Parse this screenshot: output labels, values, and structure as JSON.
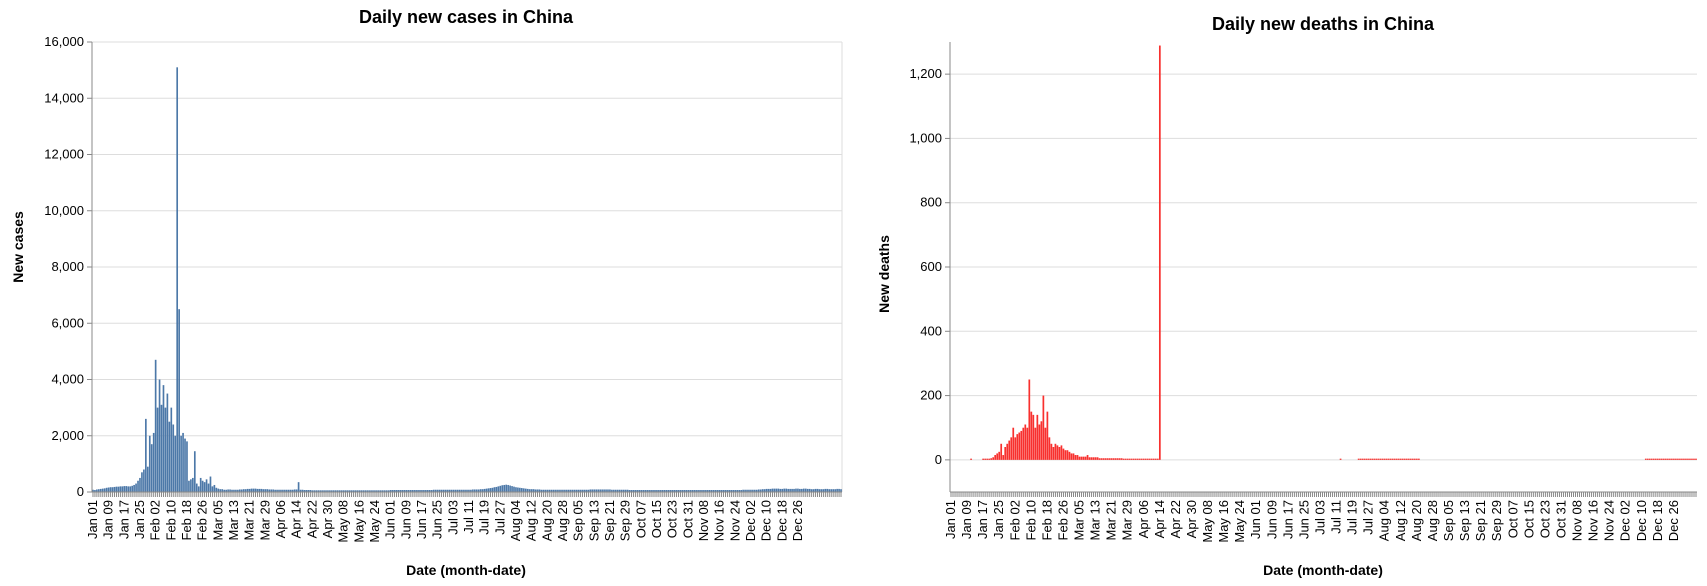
{
  "chart_data": [
    {
      "type": "bar",
      "title": "Daily new cases in China",
      "xlabel": "Date (month-date)",
      "ylabel": "New cases",
      "ylim": [
        0,
        16000
      ],
      "yticks": [
        "0",
        "2,000",
        "4,000",
        "6,000",
        "8,000",
        "10,000",
        "12,000",
        "14,000",
        "16,000"
      ],
      "ytick_values": [
        0,
        2000,
        4000,
        6000,
        8000,
        10000,
        12000,
        14000,
        16000
      ],
      "color": "#4c78a8",
      "grid": true,
      "x_start": "Jan 01",
      "xticks": [
        "Jan 01",
        "Jan 09",
        "Jan 17",
        "Jan 25",
        "Feb 02",
        "Feb 10",
        "Feb 18",
        "Feb 26",
        "Mar 05",
        "Mar 13",
        "Mar 21",
        "Mar 29",
        "Apr 06",
        "Apr 14",
        "Apr 22",
        "Apr 30",
        "May 08",
        "May 16",
        "May 24",
        "Jun 01",
        "Jun 09",
        "Jun 17",
        "Jun 25",
        "Jul 03",
        "Jul 11",
        "Jul 19",
        "Jul 27",
        "Aug 04",
        "Aug 12",
        "Aug 20",
        "Aug 28",
        "Sep 05",
        "Sep 13",
        "Sep 21",
        "Sep 29",
        "Oct 07",
        "Oct 15",
        "Oct 23",
        "Oct 31",
        "Nov 08",
        "Nov 16",
        "Nov 24",
        "Dec 02",
        "Dec 10",
        "Dec 18",
        "Dec 26"
      ],
      "values": [
        80,
        70,
        90,
        100,
        110,
        120,
        130,
        150,
        160,
        170,
        170,
        180,
        190,
        190,
        200,
        200,
        210,
        210,
        200,
        200,
        220,
        250,
        300,
        400,
        500,
        700,
        800,
        2600,
        900,
        2000,
        1700,
        2100,
        4700,
        3000,
        4000,
        3100,
        3800,
        3000,
        3500,
        2500,
        3000,
        2400,
        2000,
        15100,
        6500,
        2000,
        2100,
        1900,
        1800,
        400,
        450,
        500,
        1450,
        300,
        200,
        500,
        400,
        350,
        450,
        300,
        550,
        200,
        250,
        150,
        120,
        100,
        100,
        80,
        80,
        90,
        90,
        80,
        80,
        80,
        80,
        90,
        90,
        100,
        100,
        110,
        110,
        120,
        120,
        120,
        110,
        110,
        110,
        100,
        100,
        100,
        90,
        90,
        90,
        80,
        80,
        80,
        80,
        80,
        80,
        80,
        80,
        80,
        80,
        90,
        90,
        350,
        80,
        80,
        70,
        70,
        70,
        70,
        60,
        60,
        60,
        60,
        60,
        60,
        60,
        60,
        60,
        60,
        60,
        60,
        60,
        60,
        60,
        60,
        60,
        60,
        60,
        60,
        60,
        60,
        60,
        60,
        60,
        60,
        60,
        60,
        60,
        60,
        60,
        60,
        60,
        60,
        60,
        60,
        60,
        60,
        60,
        60,
        70,
        70,
        70,
        70,
        70,
        70,
        70,
        70,
        70,
        70,
        70,
        70,
        70,
        70,
        70,
        70,
        70,
        70,
        70,
        70,
        70,
        70,
        80,
        80,
        80,
        80,
        80,
        80,
        80,
        80,
        80,
        80,
        80,
        80,
        80,
        80,
        80,
        80,
        80,
        80,
        80,
        80,
        90,
        90,
        90,
        90,
        100,
        100,
        110,
        120,
        130,
        140,
        150,
        170,
        180,
        200,
        220,
        240,
        250,
        260,
        250,
        230,
        210,
        190,
        170,
        160,
        150,
        140,
        130,
        120,
        110,
        100,
        100,
        100,
        90,
        90,
        90,
        80,
        80,
        80,
        80,
        80,
        80,
        80,
        80,
        80,
        80,
        80,
        80,
        80,
        80,
        80,
        80,
        80,
        80,
        80,
        80,
        80,
        80,
        80,
        80,
        80,
        90,
        90,
        90,
        90,
        90,
        90,
        90,
        90,
        90,
        90,
        90,
        80,
        80,
        80,
        80,
        80,
        80,
        80,
        80,
        80,
        70,
        70,
        70,
        70,
        70,
        70,
        70,
        70,
        70,
        70,
        70,
        70,
        70,
        70,
        70,
        70,
        70,
        70,
        70,
        70,
        70,
        70,
        70,
        70,
        70,
        70,
        70,
        70,
        70,
        70,
        70,
        70,
        70,
        70,
        70,
        70,
        70,
        70,
        70,
        70,
        70,
        70,
        70,
        70,
        70,
        70,
        70,
        70,
        70,
        70,
        70,
        70,
        70,
        70,
        70,
        70,
        70,
        70,
        80,
        80,
        80,
        80,
        80,
        80,
        80,
        80,
        90,
        90,
        100,
        100,
        110,
        110,
        110,
        120,
        120,
        120,
        120,
        110,
        110,
        120,
        120,
        110,
        110,
        110,
        110,
        120,
        120,
        110,
        110,
        120,
        120,
        110,
        110,
        100,
        100,
        110,
        110,
        100,
        100,
        100,
        110,
        110,
        100,
        100,
        100,
        100,
        110,
        110,
        100
      ]
    },
    {
      "type": "bar",
      "title": "Daily new deaths in China",
      "xlabel": "Date (month-date)",
      "ylabel": "New deaths",
      "ylim": [
        -100,
        1300
      ],
      "yticks": [
        "0",
        "200",
        "400",
        "600",
        "800",
        "1,000",
        "1,200"
      ],
      "ytick_values": [
        0,
        200,
        400,
        600,
        800,
        1000,
        1200
      ],
      "color": "#f8302e",
      "grid": true,
      "x_start": "Jan 01",
      "xticks": [
        "Jan 01",
        "Jan 09",
        "Jan 17",
        "Jan 25",
        "Feb 02",
        "Feb 10",
        "Feb 18",
        "Feb 26",
        "Mar 05",
        "Mar 13",
        "Mar 21",
        "Mar 29",
        "Apr 06",
        "Apr 14",
        "Apr 22",
        "Apr 30",
        "May 08",
        "May 16",
        "May 24",
        "Jun 01",
        "Jun 09",
        "Jun 17",
        "Jun 25",
        "Jul 03",
        "Jul 11",
        "Jul 19",
        "Jul 27",
        "Aug 04",
        "Aug 12",
        "Aug 20",
        "Aug 28",
        "Sep 05",
        "Sep 13",
        "Sep 21",
        "Sep 29",
        "Oct 07",
        "Oct 15",
        "Oct 23",
        "Oct 31",
        "Nov 08",
        "Nov 16",
        "Nov 24",
        "Dec 02",
        "Dec 10",
        "Dec 18",
        "Dec 26"
      ],
      "values": [
        0,
        0,
        0,
        0,
        0,
        0,
        0,
        0,
        0,
        0,
        1,
        0,
        0,
        0,
        0,
        0,
        1,
        1,
        2,
        3,
        5,
        8,
        15,
        20,
        25,
        50,
        15,
        40,
        50,
        60,
        70,
        100,
        70,
        80,
        85,
        90,
        100,
        110,
        100,
        250,
        150,
        140,
        100,
        140,
        110,
        120,
        200,
        100,
        150,
        70,
        50,
        40,
        50,
        45,
        40,
        45,
        35,
        30,
        30,
        25,
        20,
        20,
        15,
        15,
        10,
        10,
        10,
        10,
        15,
        8,
        8,
        8,
        8,
        8,
        5,
        5,
        5,
        5,
        5,
        5,
        5,
        5,
        5,
        5,
        5,
        5,
        3,
        3,
        3,
        3,
        3,
        3,
        3,
        3,
        3,
        3,
        3,
        3,
        3,
        3,
        3,
        3,
        3,
        3,
        1289,
        0,
        0,
        0,
        0,
        0,
        0,
        0,
        0,
        0,
        0,
        0,
        0,
        0,
        0,
        0,
        0,
        0,
        0,
        0,
        0,
        0,
        0,
        0,
        0,
        0,
        0,
        0,
        0,
        0,
        0,
        0,
        0,
        0,
        0,
        0,
        0,
        0,
        0,
        0,
        0,
        0,
        0,
        0,
        0,
        0,
        0,
        0,
        0,
        0,
        0,
        0,
        0,
        0,
        0,
        0,
        0,
        0,
        0,
        0,
        0,
        0,
        0,
        0,
        0,
        0,
        0,
        0,
        0,
        0,
        0,
        0,
        0,
        0,
        0,
        0,
        0,
        0,
        0,
        0,
        0,
        0,
        0,
        0,
        0,
        0,
        0,
        0,
        0,
        0,
        1,
        0,
        0,
        0,
        0,
        0,
        0,
        0,
        0,
        2,
        2,
        2,
        2,
        3,
        3,
        3,
        3,
        3,
        3,
        3,
        3,
        2,
        2,
        2,
        2,
        2,
        2,
        2,
        2,
        2,
        2,
        2,
        1,
        1,
        1,
        1,
        1,
        1,
        1,
        1,
        0,
        0,
        0,
        0,
        0,
        0,
        0,
        0,
        0,
        0,
        0,
        0,
        0,
        0,
        0,
        0,
        0,
        0,
        0,
        0,
        0,
        0,
        0,
        0,
        0,
        0,
        0,
        0,
        0,
        0,
        0,
        0,
        0,
        0,
        0,
        0,
        0,
        0,
        0,
        0,
        0,
        0,
        0,
        0,
        0,
        0,
        0,
        0,
        0,
        0,
        0,
        0,
        0,
        0,
        0,
        0,
        0,
        0,
        0,
        0,
        0,
        0,
        0,
        0,
        0,
        0,
        0,
        0,
        0,
        0,
        0,
        0,
        0,
        0,
        0,
        0,
        0,
        0,
        0,
        0,
        0,
        0,
        0,
        0,
        0,
        0,
        0,
        0,
        0,
        0,
        0,
        0,
        0,
        0,
        0,
        0,
        0,
        0,
        0,
        0,
        0,
        0,
        0,
        0,
        0,
        0,
        0,
        0,
        0,
        0,
        0,
        0,
        1,
        1,
        1,
        1,
        1,
        1,
        1,
        1,
        1,
        1,
        1,
        1,
        1,
        1,
        1,
        1,
        1,
        1,
        1,
        1,
        1,
        1,
        1,
        1,
        1,
        1
      ]
    }
  ]
}
